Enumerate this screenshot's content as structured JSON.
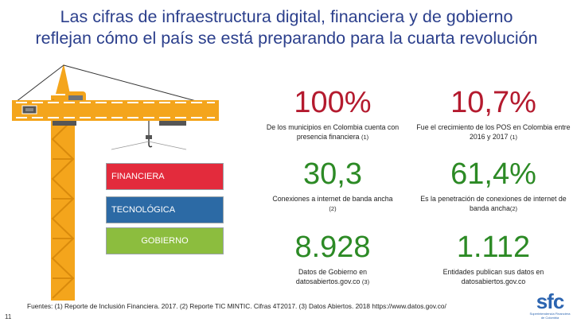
{
  "title": {
    "line1": "Las cifras de infraestructura digital, financiera y de gobierno",
    "line2": "reflejan  cómo el país se está preparando para la cuarta revolución"
  },
  "stack": {
    "financiera": "FINANCIERA",
    "tecnologica": "TECNOLÓGICA",
    "gobierno": "GOBIERNO"
  },
  "colors": {
    "title": "#2b3f8c",
    "red_values": "#b41a2e",
    "green_values": "#2c8a25",
    "crane_yellow": "#f4a51c",
    "financiera": "#e32b3c",
    "tecnologica": "#2c6aa5",
    "gobierno": "#8cbd3e"
  },
  "stats": [
    {
      "value": "100%",
      "desc": "De los municipios en Colombia cuenta con presencia financiera",
      "ref": "(1)"
    },
    {
      "value": "10,7%",
      "desc": "Fue el crecimiento de los POS en Colombia entre 2016 y 2017",
      "ref": "(1)"
    },
    {
      "value": "30,3",
      "desc": "Conexiones a internet  de banda ancha",
      "ref": "(2)"
    },
    {
      "value": "61,4%",
      "desc": "Es la penetración de conexiones de internet de banda ancha",
      "ref": "(2)"
    },
    {
      "value": "8.928",
      "desc": "Datos de Gobierno en datosabiertos.gov.co",
      "ref": "(3)"
    },
    {
      "value": "1.112",
      "desc": "Entidades publican sus  datos en datosabiertos.gov.co",
      "ref": ""
    }
  ],
  "footer": "Fuentes: (1) Reporte de Inclusión Financiera. 2017. (2) Reporte TIC MINTIC. Cifras 4T2017. (3) Datos Abiertos. 2018 https://www.datos.gov.co/",
  "page_number": "11",
  "logo": {
    "mark": "sfc",
    "sub": "Superintendencia Financiera de Colombia"
  },
  "icons": [
    "crane-icon",
    "hook-icon",
    "counterweight-icon"
  ]
}
